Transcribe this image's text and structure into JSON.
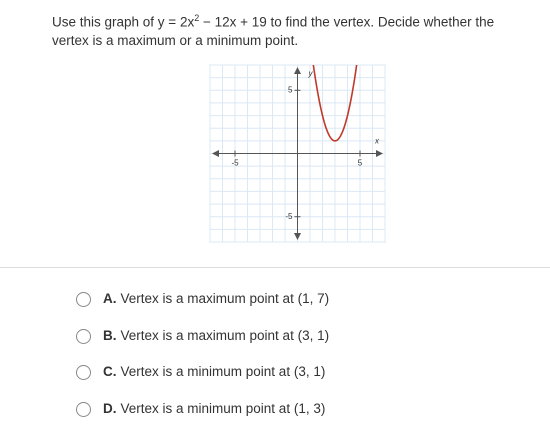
{
  "question": {
    "text_1": "Use this graph of y = 2x",
    "exponent": "2",
    "text_2": " − 12x + 19 to find the vertex. Decide whether the vertex is a maximum or a minimum point."
  },
  "graph": {
    "function": {
      "a": 2,
      "b": -12,
      "c": 19
    },
    "xlim": [
      -7,
      7
    ],
    "ylim": [
      -7,
      7
    ],
    "xticks": [
      -5,
      5
    ],
    "yticks": [
      -5,
      5
    ],
    "x_label": "x",
    "y_label": "y",
    "color": "#c0392b"
  },
  "options": [
    {
      "letter": "A.",
      "text": "Vertex is a maximum point at (1, 7)"
    },
    {
      "letter": "B.",
      "text": "Vertex is a maximum point at (3, 1)"
    },
    {
      "letter": "C.",
      "text": "Vertex is a minimum point at (3, 1)"
    },
    {
      "letter": "D.",
      "text": "Vertex is a minimum point at (1, 3)"
    }
  ]
}
